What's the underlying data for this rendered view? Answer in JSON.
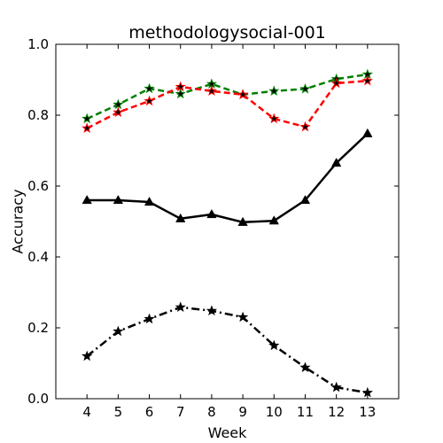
{
  "chart_data": {
    "type": "line",
    "title": "methodologysocial-001",
    "xlabel": "Week",
    "ylabel": "Accuracy",
    "x": [
      4,
      5,
      6,
      7,
      8,
      9,
      10,
      11,
      12,
      13
    ],
    "xlim": [
      3,
      14
    ],
    "ylim": [
      0.0,
      1.0
    ],
    "x_ticks": [
      "4",
      "5",
      "6",
      "7",
      "8",
      "9",
      "10",
      "11",
      "12",
      "13"
    ],
    "y_ticks": [
      "0.0",
      "0.2",
      "0.4",
      "0.6",
      "0.8",
      "1.0"
    ],
    "grid": false,
    "series": [
      {
        "color": "#008000",
        "line_style": "dashed",
        "marker": "star",
        "values": [
          0.79,
          0.83,
          0.875,
          0.86,
          0.888,
          0.858,
          0.868,
          0.874,
          0.902,
          0.915
        ]
      },
      {
        "color": "#ff0000",
        "line_style": "dashed",
        "marker": "star",
        "values": [
          0.763,
          0.808,
          0.84,
          0.88,
          0.868,
          0.858,
          0.79,
          0.767,
          0.89,
          0.897
        ]
      },
      {
        "color": "#000000",
        "line_style": "solid",
        "marker": "triangle",
        "values": [
          0.56,
          0.56,
          0.555,
          0.508,
          0.52,
          0.498,
          0.502,
          0.56,
          0.665,
          0.748
        ]
      },
      {
        "color": "#000000",
        "line_style": "dashdot",
        "marker": "star",
        "values": [
          0.12,
          0.19,
          0.225,
          0.258,
          0.248,
          0.23,
          0.15,
          0.088,
          0.032,
          0.017
        ]
      }
    ]
  }
}
